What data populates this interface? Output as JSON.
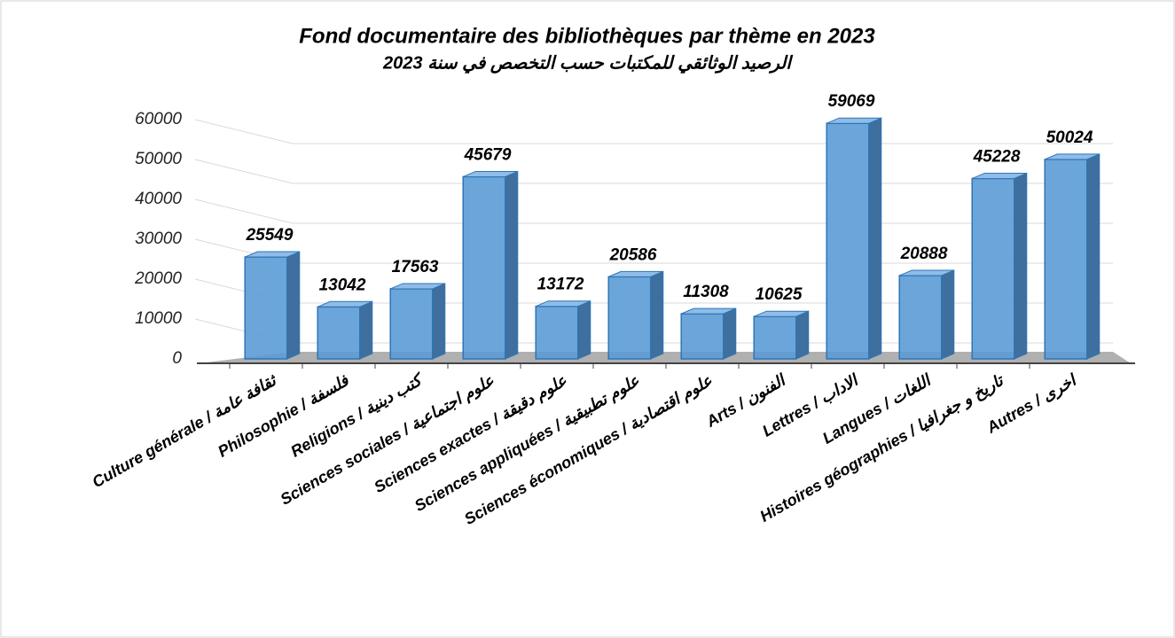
{
  "chart_data": {
    "type": "bar",
    "title": "Fond documentaire des bibliothèques par thème en 2023",
    "subtitle": "الرصيد الوثائقي للمكتبات حسب التخصص في سنة 2023",
    "categories": [
      "Culture générale / ثقافة عامة",
      "Philosophie / فلسفة",
      "Religions / كتب دينية",
      "Sciences sociales / علوم اجتماعية",
      "Sciences exactes / علوم دقيقة",
      "Sciences appliquées / علوم تطبيقية",
      "Sciences économiques / علوم اقتصادية",
      "Arts / الفنون",
      "Lettres / الاداب",
      "Langues / اللغات",
      "Histoires géographies / تاريخ و جغرافيا",
      "Autres / اخرى"
    ],
    "values": [
      25549,
      13042,
      17563,
      45679,
      13172,
      20586,
      11308,
      10625,
      59069,
      20888,
      45228,
      50024
    ],
    "color": "#5b9bd5",
    "ylim": [
      0,
      60000
    ],
    "yticks": [
      0,
      10000,
      20000,
      30000,
      40000,
      50000,
      60000
    ],
    "grid": true
  }
}
